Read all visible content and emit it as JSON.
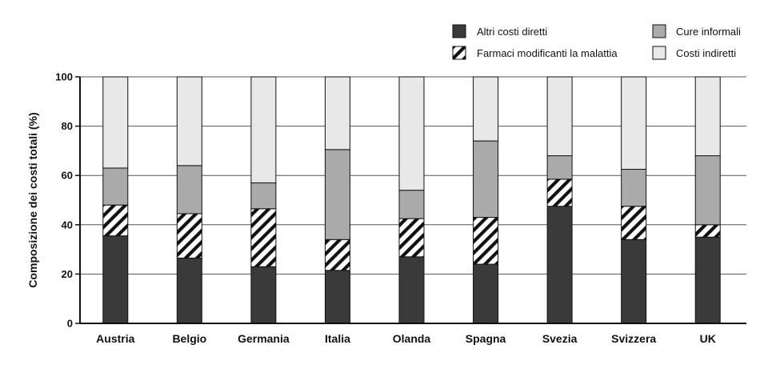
{
  "chart_data": {
    "type": "bar",
    "stacked": true,
    "categories": [
      "Austria",
      "Belgio",
      "Germania",
      "Italia",
      "Olanda",
      "Spagna",
      "Svezia",
      "Svizzera",
      "UK"
    ],
    "series": [
      {
        "name": "Altri costi diretti",
        "key": "altri",
        "color": "#3a3a3a",
        "values": [
          35.5,
          26.5,
          23,
          21.5,
          27,
          24,
          47.5,
          34,
          35
        ]
      },
      {
        "name": "Farmaci modificanti la malattia",
        "key": "farmaci",
        "color": "hatch",
        "values": [
          12.5,
          18,
          23.5,
          12.5,
          15.5,
          19,
          11,
          13.5,
          5
        ]
      },
      {
        "name": "Cure informali",
        "key": "cure",
        "color": "#aaaaaa",
        "values": [
          15,
          19.5,
          10.5,
          36.5,
          11.5,
          31,
          9.5,
          15,
          28
        ]
      },
      {
        "name": "Costi indiretti",
        "key": "indiretti",
        "color": "#e8e8e8",
        "values": [
          37,
          36,
          43,
          29.5,
          46,
          26,
          32,
          37.5,
          32
        ]
      }
    ],
    "ylabel": "Composizione dei costi totali (%)",
    "xlabel": "",
    "ylim": [
      0,
      100
    ],
    "yticks": [
      0,
      20,
      40,
      60,
      80,
      100
    ],
    "grid": true,
    "legend": {
      "placement": "top-right",
      "entries": [
        "Altri costi diretti",
        "Cure informali",
        "Farmaci modificanti la malattia",
        "Costi indiretti"
      ]
    }
  }
}
